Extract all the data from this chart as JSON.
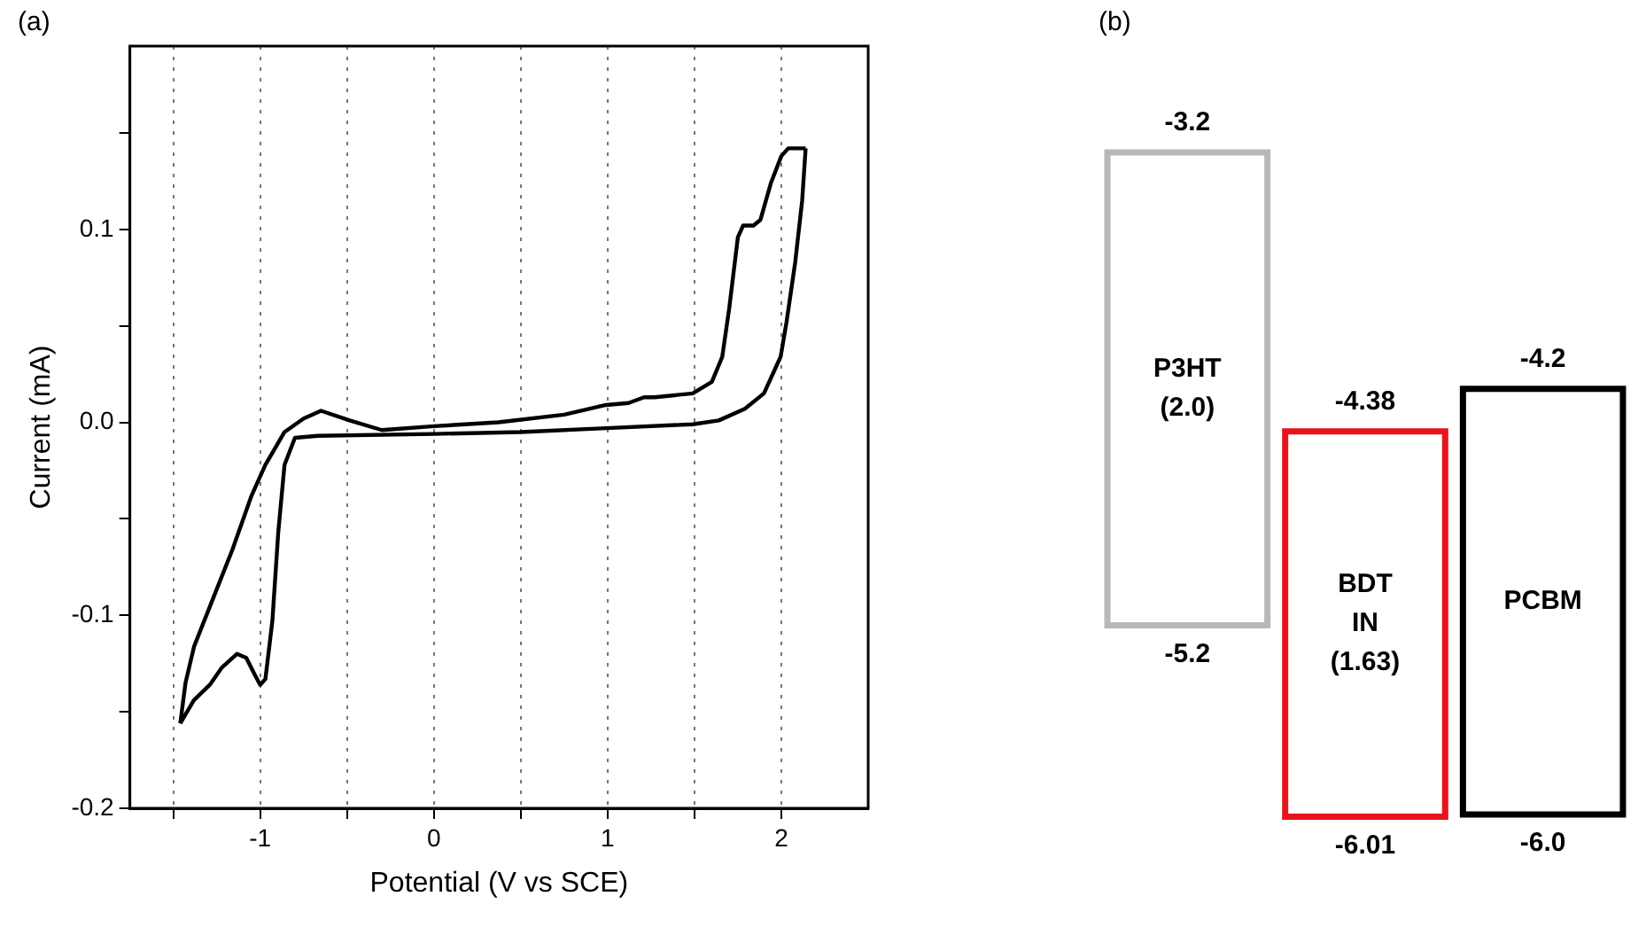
{
  "chart_data": [
    {
      "type": "line",
      "title": "(a)",
      "xlabel": "Potential (V vs SCE)",
      "ylabel": "Current (mA)",
      "xlim": [
        -1.75,
        2.5
      ],
      "ylim": [
        -0.2,
        0.195
      ],
      "xticks": [
        {
          "value": -1.5,
          "label": null
        },
        -1,
        {
          "value": -0.5,
          "label": null
        },
        {
          "value": 0,
          "label": "0"
        },
        {
          "value": 0.5,
          "label": null
        },
        1,
        {
          "value": 1.5,
          "label": null
        },
        2
      ],
      "yticks": [
        -0.2,
        {
          "value": -0.15,
          "label": null
        },
        -0.1,
        {
          "value": -0.05,
          "label": null
        },
        {
          "value": 0,
          "label": "0.0"
        },
        {
          "value": 0.05,
          "label": null
        },
        0.1,
        {
          "value": 0.15,
          "label": null
        }
      ],
      "grid": "x",
      "legend": false,
      "marker": "none",
      "line_style": "solid",
      "series": [
        {
          "color": "#000000",
          "x": [
            -1.46,
            -1.382,
            -1.29,
            -1.22,
            -1.134,
            -1.08,
            -1.03,
            -1.0,
            -0.97,
            -0.93,
            -0.896,
            -0.86,
            -0.8,
            -0.67,
            0,
            0.5,
            0.99,
            1.49,
            1.64,
            1.79,
            1.9,
            1.996,
            2.03,
            2.08,
            2.12,
            2.14
          ],
          "values": [
            -0.156,
            -0.144,
            -0.136,
            -0.127,
            -0.12,
            -0.122,
            -0.131,
            -0.136,
            -0.133,
            -0.103,
            -0.057,
            -0.022,
            -0.008,
            -0.007,
            -0.006,
            -0.005,
            -0.003,
            -0.001,
            0.001,
            0.007,
            0.015,
            0.034,
            0.052,
            0.083,
            0.115,
            0.142
          ]
        },
        {
          "color": "#000000",
          "x": [
            2.14,
            2.04,
            2.0,
            1.94,
            1.88,
            1.84,
            1.78,
            1.75,
            1.7,
            1.66,
            1.6,
            1.49,
            1.27,
            1.21,
            1.12,
            0.99,
            0.75,
            0.37,
            0,
            -0.3,
            -0.485,
            -0.65,
            -0.75,
            -0.86,
            -0.97,
            -1.05,
            -1.16,
            -1.27,
            -1.38,
            -1.43,
            -1.46
          ],
          "values": [
            0.142,
            0.142,
            0.138,
            0.124,
            0.105,
            0.102,
            0.102,
            0.096,
            0.059,
            0.034,
            0.021,
            0.015,
            0.013,
            0.013,
            0.01,
            0.009,
            0.004,
            0.0,
            -0.002,
            -0.004,
            0.001,
            0.006,
            0.002,
            -0.005,
            -0.022,
            -0.038,
            -0.066,
            -0.091,
            -0.116,
            -0.135,
            -0.156
          ]
        }
      ]
    },
    {
      "type": "other",
      "title": "(b)",
      "categories": [
        "P3HT",
        "BDT IN",
        "PCBM"
      ],
      "colors": [
        "#b8b8b8",
        "#e8141c",
        "#000000"
      ],
      "value_labels": [
        "(2.0)",
        "(1.63)",
        null
      ],
      "annotations": [
        "-3.2",
        "-5.2",
        "-4.38",
        "-6.01",
        "-4.2",
        "-6.0"
      ]
    }
  ]
}
